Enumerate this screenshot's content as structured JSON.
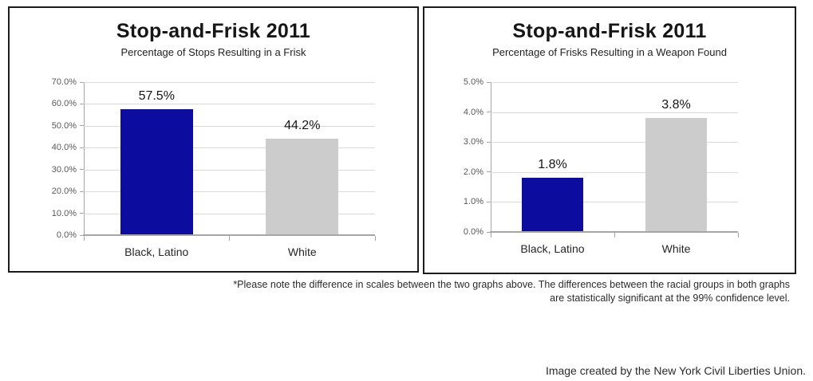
{
  "chart_data": [
    {
      "type": "bar",
      "title": "Stop-and-Frisk 2011",
      "subtitle": "Percentage of Stops Resulting in a Frisk",
      "categories": [
        "Black, Latino",
        "White"
      ],
      "values": [
        57.5,
        44.2
      ],
      "value_labels": [
        "57.5%",
        "44.2%"
      ],
      "ylim": [
        0,
        70
      ],
      "ytick_step": 10,
      "ytick_labels": [
        "0.0%",
        "10.0%",
        "20.0%",
        "30.0%",
        "40.0%",
        "50.0%",
        "60.0%",
        "70.0%"
      ],
      "bar_colors": [
        "#0c0c9e",
        "#cccccc"
      ],
      "grid": true,
      "legend": "none",
      "xlabel": "",
      "ylabel": ""
    },
    {
      "type": "bar",
      "title": "Stop-and-Frisk 2011",
      "subtitle": "Percentage of Frisks Resulting in a Weapon Found",
      "categories": [
        "Black, Latino",
        "White"
      ],
      "values": [
        1.8,
        3.8
      ],
      "value_labels": [
        "1.8%",
        "3.8%"
      ],
      "ylim": [
        0,
        5
      ],
      "ytick_step": 1,
      "ytick_labels": [
        "0.0%",
        "1.0%",
        "2.0%",
        "3.0%",
        "4.0%",
        "5.0%"
      ],
      "bar_colors": [
        "#0c0c9e",
        "#cccccc"
      ],
      "grid": true,
      "legend": "none",
      "xlabel": "",
      "ylabel": ""
    }
  ],
  "footnote": {
    "lines": [
      "*Please note the difference in scales between the two graphs above. The differences between the racial groups in both graphs",
      "are statistically significant at the 99% confidence level."
    ]
  },
  "credit": "Image created by the New York Civil Liberties Union.",
  "colors": {
    "bar_blue": "#0c0c9e",
    "bar_gray": "#cccccc",
    "gridline": "#dadada",
    "axis": "#a6a6a6",
    "tick_label": "#595959",
    "panel_border": "#1c1c1c",
    "text": "#161616"
  }
}
